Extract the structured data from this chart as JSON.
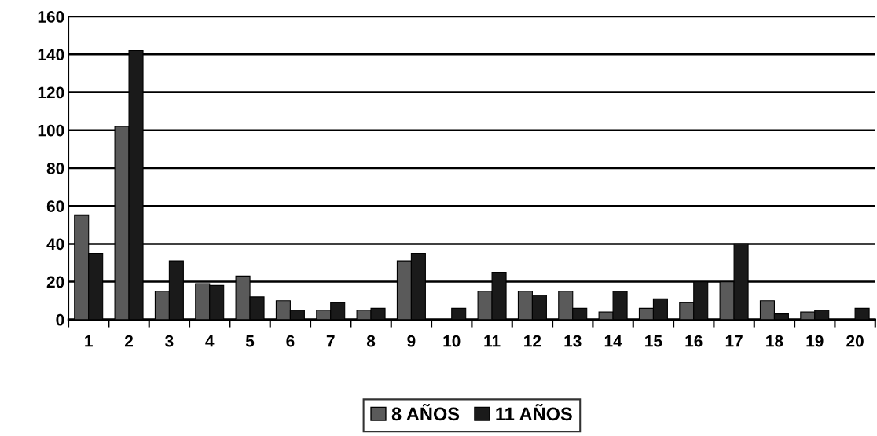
{
  "chart_data": {
    "type": "bar",
    "categories": [
      "1",
      "2",
      "3",
      "4",
      "5",
      "6",
      "7",
      "8",
      "9",
      "10",
      "11",
      "12",
      "13",
      "14",
      "15",
      "16",
      "17",
      "18",
      "19",
      "20"
    ],
    "series": [
      {
        "name": "8 AÑOS",
        "color": "#5a5a5a",
        "values": [
          55,
          102,
          15,
          19,
          23,
          10,
          5,
          5,
          31,
          null,
          15,
          15,
          15,
          4,
          6,
          9,
          20,
          10,
          4,
          null
        ]
      },
      {
        "name": "11 AÑOS",
        "color": "#1a1a1a",
        "values": [
          35,
          142,
          31,
          18,
          12,
          5,
          9,
          6,
          35,
          6,
          25,
          13,
          6,
          15,
          11,
          20,
          40,
          3,
          5,
          6
        ]
      }
    ],
    "ylim": [
      0,
      160
    ],
    "yticks": [
      0,
      20,
      40,
      60,
      80,
      100,
      120,
      140,
      160
    ],
    "grid": "y",
    "legend": "bottom"
  }
}
